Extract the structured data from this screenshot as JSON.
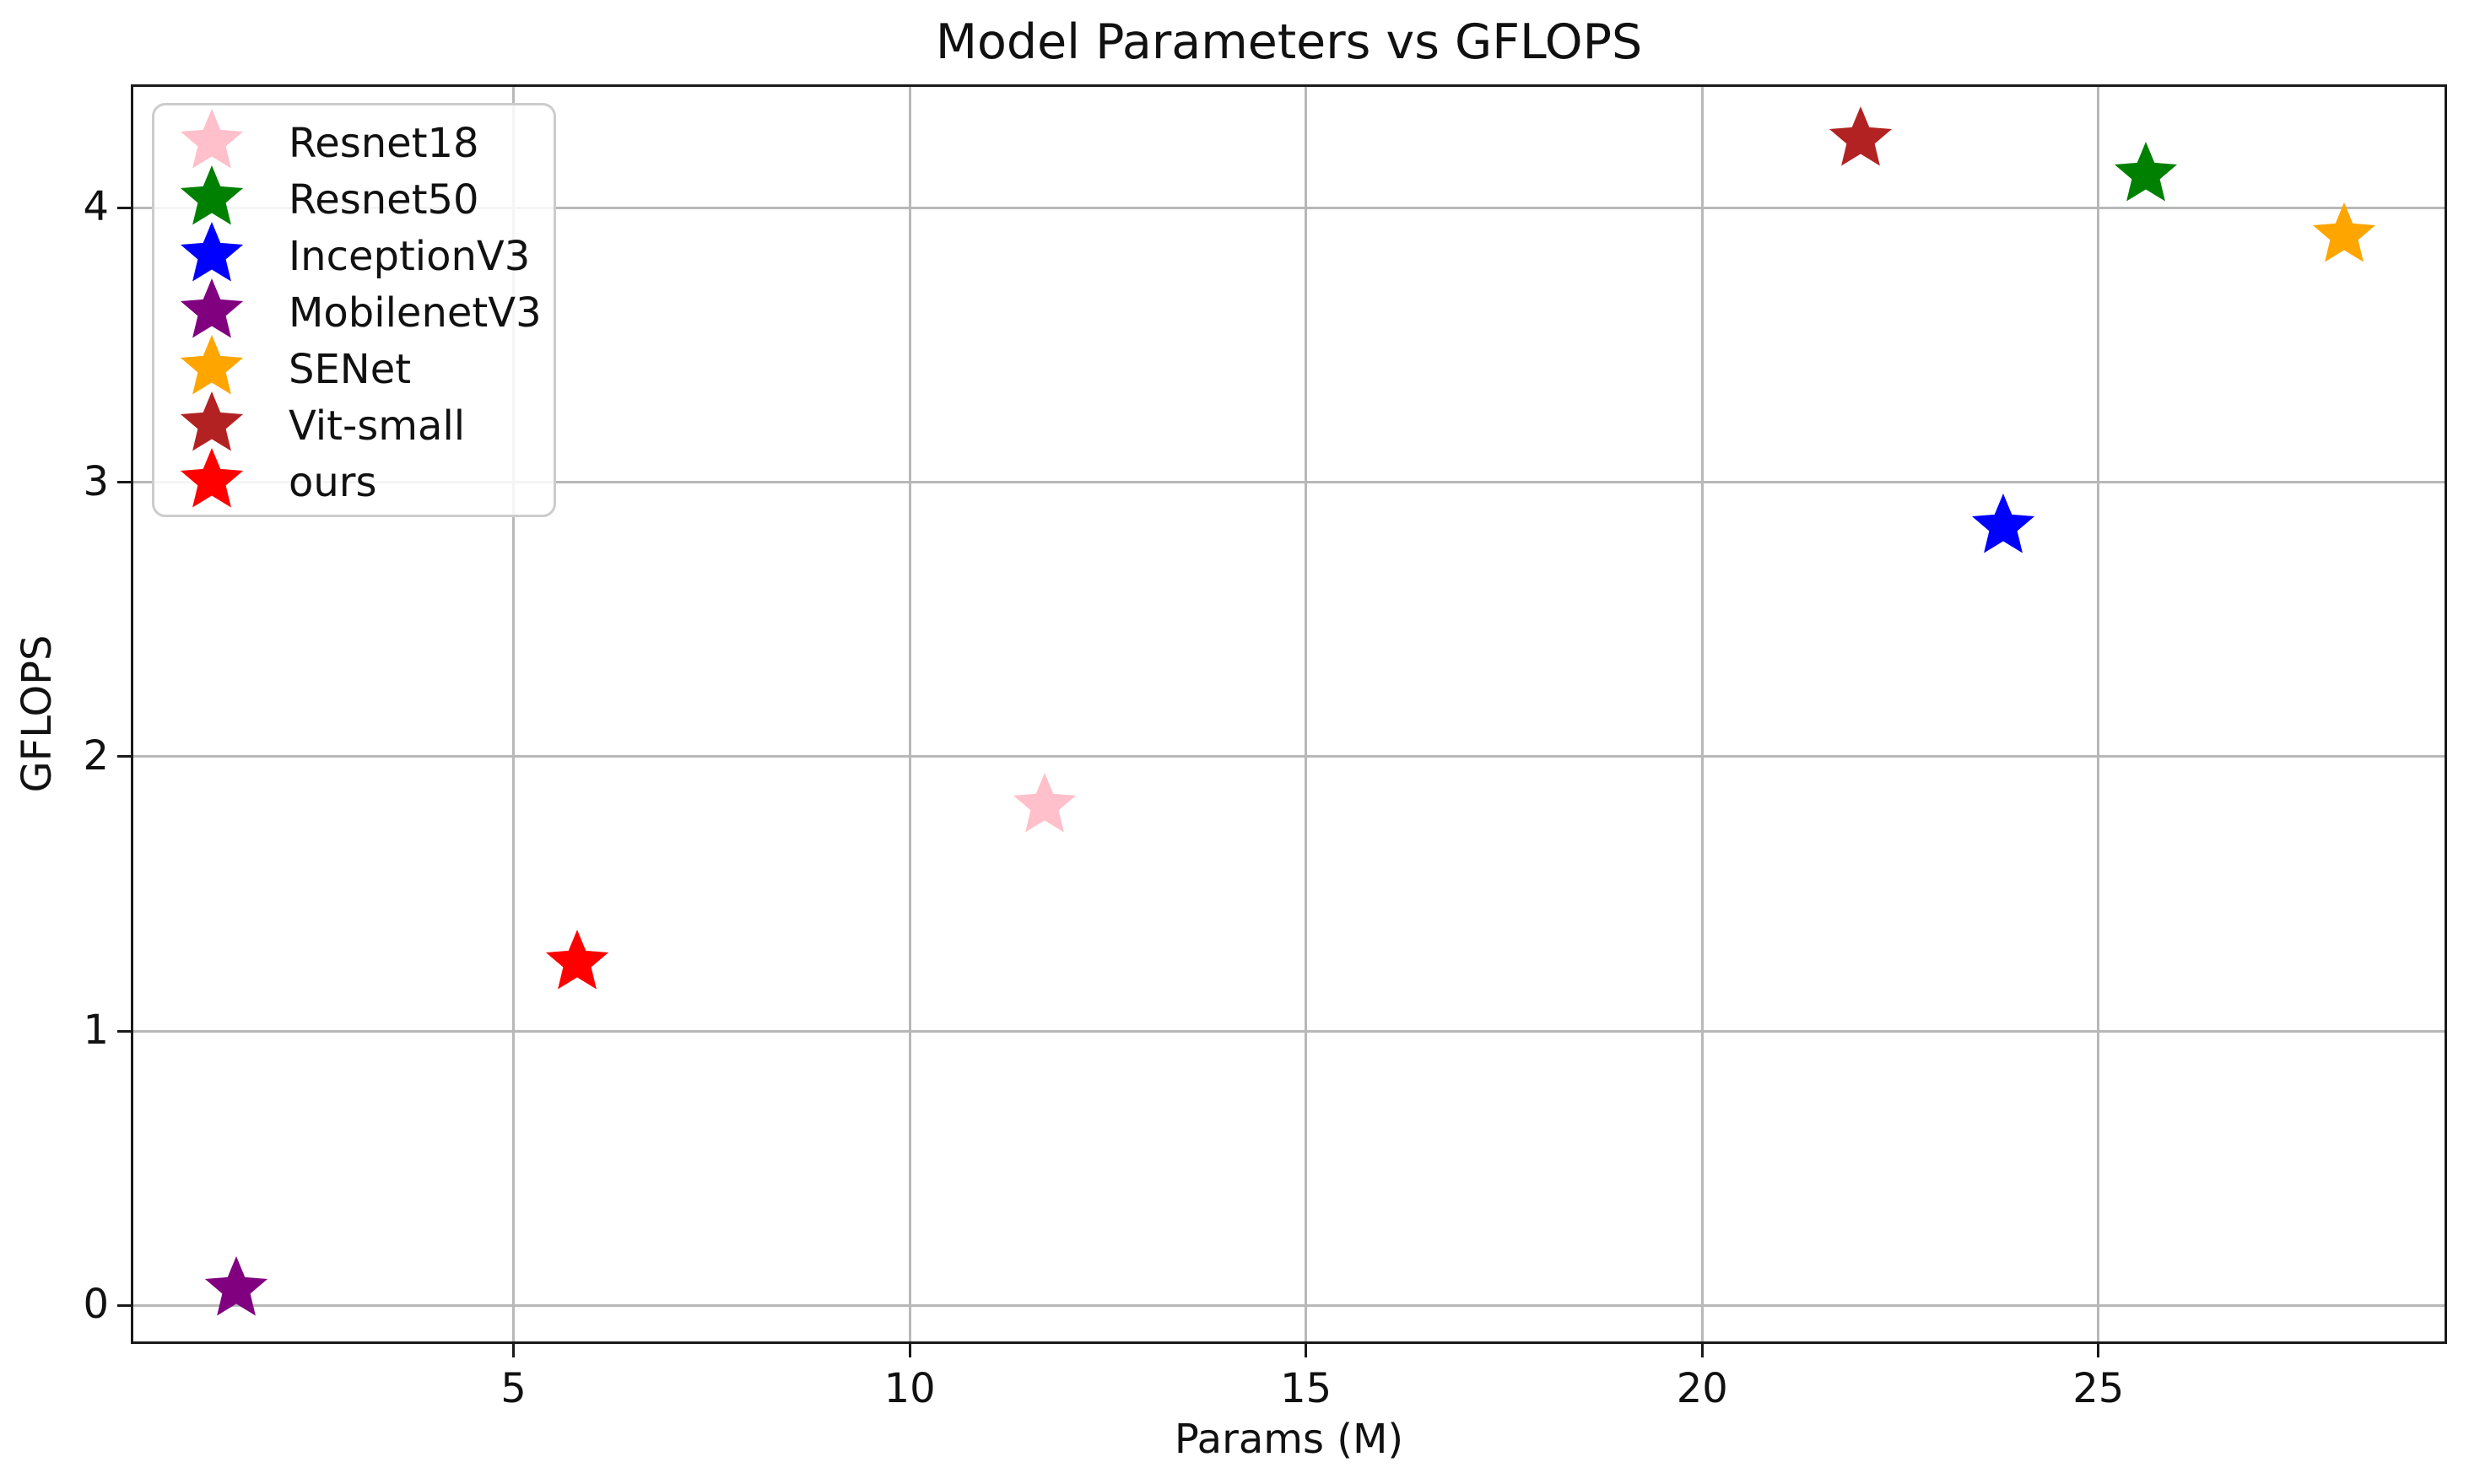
{
  "chart_data": {
    "type": "scatter",
    "title": "Model Parameters vs GFLOPS",
    "xlabel": "Params (M)",
    "ylabel": "GFLOPS",
    "xlim": [
      0.17,
      29.4
    ],
    "ylim": [
      -0.14,
      4.45
    ],
    "xticks": [
      5,
      10,
      15,
      20,
      25
    ],
    "yticks": [
      0,
      1,
      2,
      3,
      4
    ],
    "grid": true,
    "marker": "star",
    "legend_position": "upper-left",
    "series": [
      {
        "name": "Resnet18",
        "color": "#FFC0CB",
        "x": 11.7,
        "y": 1.82
      },
      {
        "name": "Resnet50",
        "color": "#008000",
        "x": 25.6,
        "y": 4.12
      },
      {
        "name": "InceptionV3",
        "color": "#0000FF",
        "x": 23.8,
        "y": 2.84
      },
      {
        "name": "MobilenetV3",
        "color": "#800080",
        "x": 1.5,
        "y": 0.06
      },
      {
        "name": "SENet",
        "color": "#FFA500",
        "x": 28.1,
        "y": 3.9
      },
      {
        "name": "Vit-small",
        "color": "#B22222",
        "x": 22.0,
        "y": 4.25
      },
      {
        "name": "ours",
        "color": "#FF0000",
        "x": 5.8,
        "y": 1.25
      }
    ],
    "colors": {
      "grid": "#b8b8b8",
      "spine": "#1a1a1a",
      "text": "#111111",
      "legend_border": "#cccccc",
      "background": "#ffffff"
    }
  }
}
